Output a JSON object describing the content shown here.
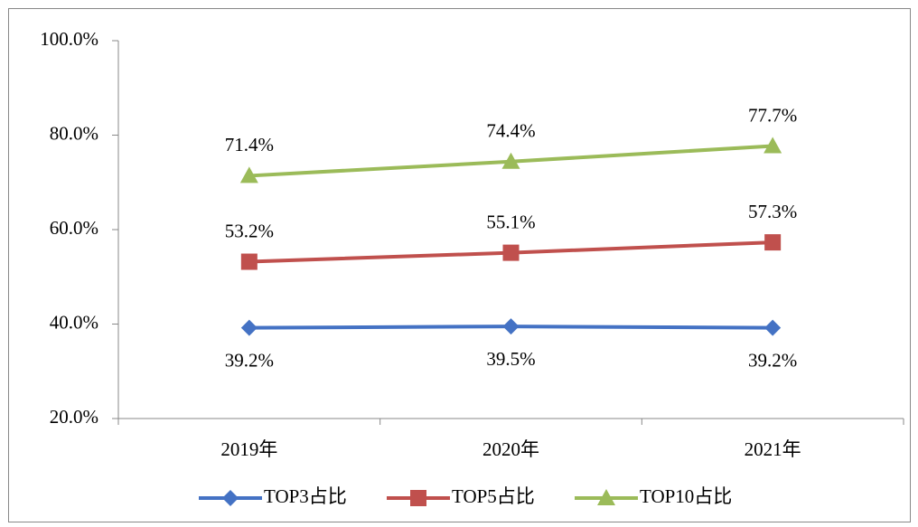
{
  "chart_data": {
    "type": "line",
    "categories": [
      "2019年",
      "2020年",
      "2021年"
    ],
    "series": [
      {
        "name": "TOP3占比",
        "color": "#4472c4",
        "marker": "diamond",
        "values": [
          39.2,
          39.5,
          39.2
        ],
        "value_labels": [
          "39.2%",
          "39.5%",
          "39.2%"
        ]
      },
      {
        "name": "TOP5占比",
        "color": "#c0504d",
        "marker": "square",
        "values": [
          53.2,
          55.1,
          57.3
        ],
        "value_labels": [
          "53.2%",
          "55.1%",
          "57.3%"
        ]
      },
      {
        "name": "TOP10占比",
        "color": "#9bbb59",
        "marker": "triangle",
        "values": [
          71.4,
          74.4,
          77.7
        ],
        "value_labels": [
          "71.4%",
          "74.4%",
          "77.7%"
        ]
      }
    ],
    "ylim": [
      20,
      100
    ],
    "yticks": [
      {
        "value": 20,
        "label": "20.0%"
      },
      {
        "value": 40,
        "label": "40.0%"
      },
      {
        "value": 60,
        "label": "60.0%"
      },
      {
        "value": 80,
        "label": "80.0%"
      },
      {
        "value": 100,
        "label": "100.0%"
      }
    ],
    "grid": false,
    "legend": "bottom"
  }
}
